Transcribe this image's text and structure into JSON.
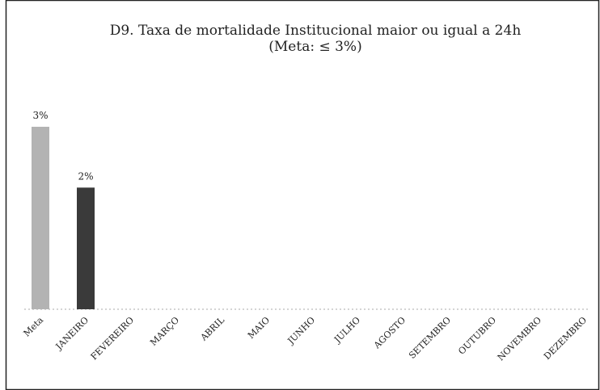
{
  "chart_data": {
    "type": "bar",
    "title": "D9. Taxa de mortalidade Institucional maior ou igual a 24h",
    "subtitle": "(Meta: ≤ 3%)",
    "categories": [
      "Meta",
      "JANEIRO",
      "FEVEREIRO",
      "MARÇO",
      "ABRIL",
      "MAIO",
      "JUNHO",
      "JULHO",
      "AGOSTO",
      "SETEMBRO",
      "OUTUBRO",
      "NOVEMBRO",
      "DEZEMBRO"
    ],
    "values": [
      3,
      2,
      null,
      null,
      null,
      null,
      null,
      null,
      null,
      null,
      null,
      null,
      null
    ],
    "value_labels": [
      "3%",
      "2%",
      null,
      null,
      null,
      null,
      null,
      null,
      null,
      null,
      null,
      null,
      null
    ],
    "colors": [
      "#b3b3b3",
      "#3a3a3a",
      "#3a3a3a",
      "#3a3a3a",
      "#3a3a3a",
      "#3a3a3a",
      "#3a3a3a",
      "#3a3a3a",
      "#3a3a3a",
      "#3a3a3a",
      "#3a3a3a",
      "#3a3a3a",
      "#3a3a3a"
    ]
  }
}
